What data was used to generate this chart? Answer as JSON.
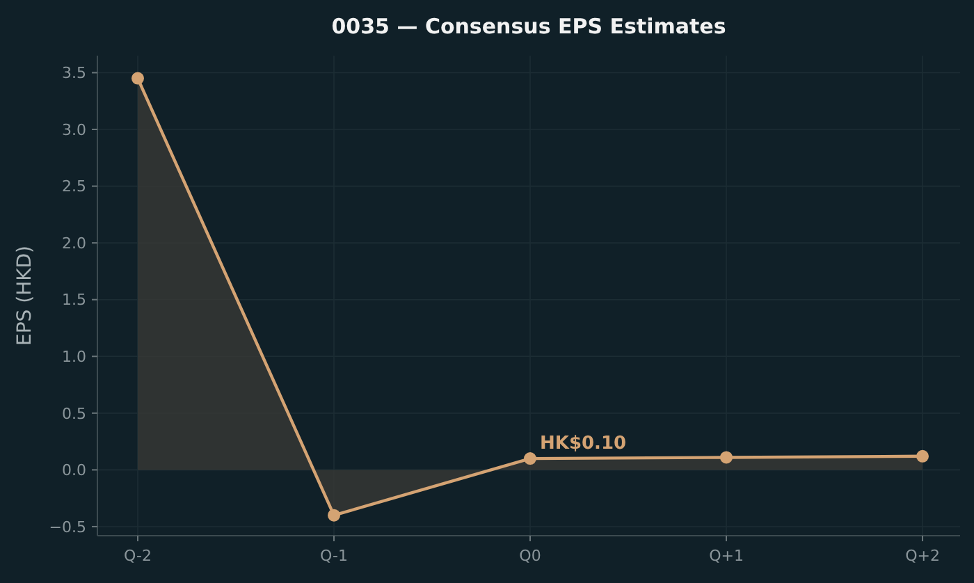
{
  "chart_data": {
    "type": "area",
    "title": "0035 — Consensus EPS Estimates",
    "ylabel": "EPS (HKD)",
    "categories": [
      "Q-2",
      "Q-1",
      "Q0",
      "Q+1",
      "Q+2"
    ],
    "series": [
      {
        "color": "#d4a373",
        "values": [
          3.45,
          -0.4,
          0.1,
          0.11,
          0.12
        ]
      }
    ],
    "ylim": [
      -0.58,
      3.65
    ],
    "yticks": [
      {
        "value": -0.5,
        "label": "−0.5"
      },
      {
        "value": 0,
        "label": "0.0"
      },
      0.5,
      {
        "value": 1,
        "label": "1.0"
      },
      1.5,
      {
        "value": 2,
        "label": "2.0"
      },
      2.5,
      {
        "value": 3,
        "label": "3.0"
      },
      3.5
    ],
    "annotations": [
      {
        "text": "HK$0.10",
        "x": "Q0",
        "y": 0.1
      }
    ],
    "grid": true,
    "marker": "circle"
  }
}
